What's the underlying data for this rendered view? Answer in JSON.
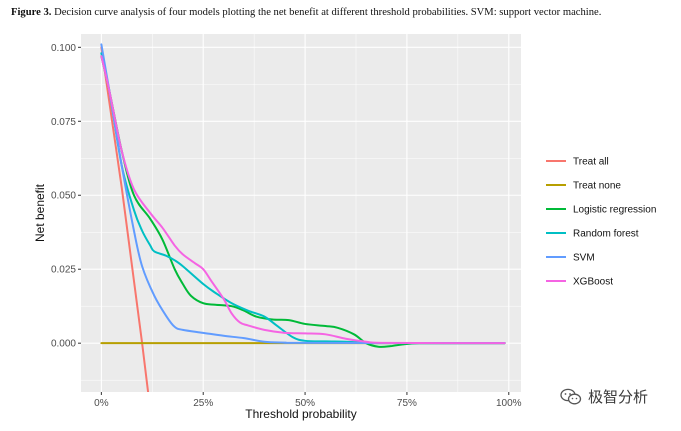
{
  "figure": {
    "label": "Figure 3.",
    "caption": "Decision curve analysis of four models plotting the net benefit at different threshold probabilities. SVM: support vector machine."
  },
  "watermark": {
    "text": "极智分析",
    "icon": "wechat-icon"
  },
  "chart_data": {
    "type": "line",
    "xlabel": "Threshold probability",
    "ylabel": "Net benefit",
    "xlim": [
      -0.05,
      1.03
    ],
    "ylim": [
      -0.0165,
      0.1045
    ],
    "x_ticks": [
      0,
      0.25,
      0.5,
      0.75,
      1.0
    ],
    "x_tick_labels": [
      "0%",
      "25%",
      "50%",
      "75%",
      "100%"
    ],
    "y_ticks": [
      0,
      0.025,
      0.05,
      0.075,
      0.1
    ],
    "y_tick_labels": [
      "0.000",
      "0.025",
      "0.050",
      "0.075",
      "0.100"
    ],
    "grid": true,
    "background": "#ebebeb",
    "legend_position": "right",
    "series": [
      {
        "name": "Treat all",
        "color": "#f8766d",
        "points": [
          [
            0,
            0.1
          ],
          [
            0.05,
            0.0526
          ],
          [
            0.1,
            0.0
          ],
          [
            0.115,
            -0.0169
          ]
        ]
      },
      {
        "name": "Treat none",
        "color": "#b79f00",
        "points": [
          [
            0,
            0
          ],
          [
            0.25,
            0
          ],
          [
            0.5,
            0
          ],
          [
            0.75,
            0
          ],
          [
            0.99,
            0
          ]
        ]
      },
      {
        "name": "Logistic regression",
        "color": "#00ba38",
        "points": [
          [
            0,
            0.097
          ],
          [
            0.02,
            0.085
          ],
          [
            0.05,
            0.065
          ],
          [
            0.08,
            0.05
          ],
          [
            0.12,
            0.042
          ],
          [
            0.15,
            0.035
          ],
          [
            0.18,
            0.025
          ],
          [
            0.2,
            0.02
          ],
          [
            0.22,
            0.016
          ],
          [
            0.25,
            0.0135
          ],
          [
            0.28,
            0.013
          ],
          [
            0.32,
            0.0125
          ],
          [
            0.35,
            0.011
          ],
          [
            0.38,
            0.009
          ],
          [
            0.42,
            0.008
          ],
          [
            0.46,
            0.0078
          ],
          [
            0.5,
            0.0065
          ],
          [
            0.55,
            0.0058
          ],
          [
            0.58,
            0.0052
          ],
          [
            0.62,
            0.003
          ],
          [
            0.65,
            0.0
          ],
          [
            0.68,
            -0.0012
          ],
          [
            0.71,
            -0.001
          ],
          [
            0.74,
            -0.0004
          ],
          [
            0.78,
            0
          ],
          [
            0.85,
            0
          ],
          [
            0.99,
            0
          ]
        ]
      },
      {
        "name": "Random forest",
        "color": "#00bfc4",
        "points": [
          [
            0,
            0.098
          ],
          [
            0.02,
            0.085
          ],
          [
            0.05,
            0.06
          ],
          [
            0.08,
            0.045
          ],
          [
            0.1,
            0.038
          ],
          [
            0.12,
            0.033
          ],
          [
            0.13,
            0.031
          ],
          [
            0.16,
            0.0295
          ],
          [
            0.18,
            0.028
          ],
          [
            0.2,
            0.026
          ],
          [
            0.25,
            0.02
          ],
          [
            0.28,
            0.017
          ],
          [
            0.32,
            0.0135
          ],
          [
            0.36,
            0.011
          ],
          [
            0.4,
            0.009
          ],
          [
            0.43,
            0.006
          ],
          [
            0.47,
            0.002
          ],
          [
            0.5,
            0.0008
          ],
          [
            0.55,
            0.0006
          ],
          [
            0.6,
            0.0005
          ],
          [
            0.65,
            0.0002
          ],
          [
            0.7,
            0
          ],
          [
            0.99,
            0
          ]
        ]
      },
      {
        "name": "SVM",
        "color": "#619cff",
        "points": [
          [
            0,
            0.101
          ],
          [
            0.02,
            0.085
          ],
          [
            0.05,
            0.06
          ],
          [
            0.08,
            0.038
          ],
          [
            0.1,
            0.026
          ],
          [
            0.13,
            0.016
          ],
          [
            0.16,
            0.009
          ],
          [
            0.18,
            0.0055
          ],
          [
            0.2,
            0.0045
          ],
          [
            0.25,
            0.0035
          ],
          [
            0.3,
            0.0025
          ],
          [
            0.35,
            0.0017
          ],
          [
            0.4,
            0.0005
          ],
          [
            0.45,
            0.0002
          ],
          [
            0.5,
            0.0001
          ],
          [
            0.99,
            0
          ]
        ]
      },
      {
        "name": "XGBoost",
        "color": "#f564e3",
        "points": [
          [
            0,
            0.097
          ],
          [
            0.02,
            0.085
          ],
          [
            0.05,
            0.065
          ],
          [
            0.08,
            0.052
          ],
          [
            0.12,
            0.044
          ],
          [
            0.15,
            0.039
          ],
          [
            0.18,
            0.033
          ],
          [
            0.2,
            0.03
          ],
          [
            0.23,
            0.027
          ],
          [
            0.25,
            0.025
          ],
          [
            0.27,
            0.021
          ],
          [
            0.3,
            0.015
          ],
          [
            0.32,
            0.01
          ],
          [
            0.34,
            0.007
          ],
          [
            0.36,
            0.006
          ],
          [
            0.4,
            0.0045
          ],
          [
            0.45,
            0.0035
          ],
          [
            0.5,
            0.0033
          ],
          [
            0.55,
            0.003
          ],
          [
            0.6,
            0.0015
          ],
          [
            0.65,
            0.0005
          ],
          [
            0.7,
            0.0001
          ],
          [
            0.99,
            0
          ]
        ]
      }
    ]
  }
}
